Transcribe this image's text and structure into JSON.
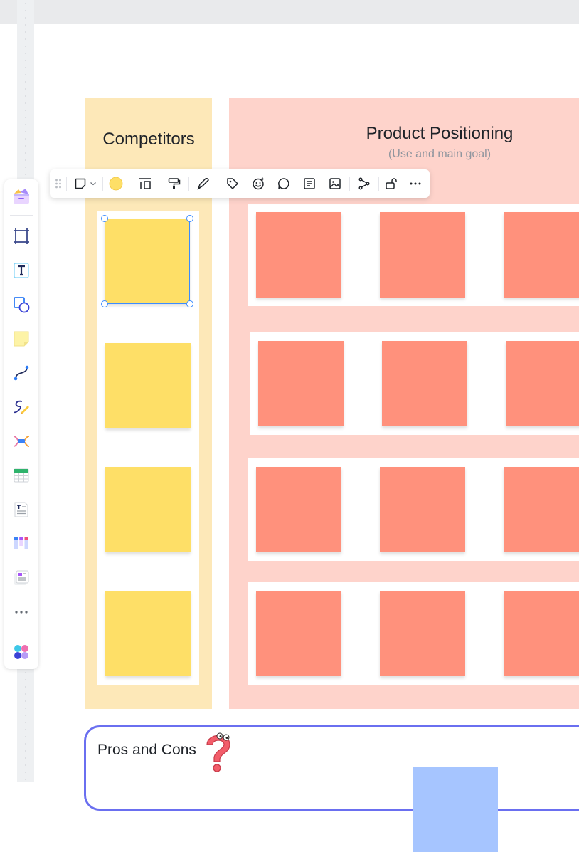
{
  "board": {
    "competitors_title": "Competitors",
    "product_title": "Product Positioning",
    "product_subtitle": "(Use and main goal)",
    "pros_cons_title": "Pros and Cons"
  },
  "colors": {
    "competitors_bg": "#fde8b8",
    "product_bg": "#fed3cb",
    "yellow_sticky": "#fedf67",
    "salmon_sticky": "#ff917c",
    "blue_sticky": "#a6c5ff",
    "selection": "#3c8cff",
    "frame_border": "#6a6ff0"
  },
  "toolbar": {
    "color_swatch": "#fedf67",
    "items": [
      "drag-handle-icon",
      "sticky-shape-icon",
      "chevron-down-icon",
      "color-swatch",
      "text-align-icon",
      "format-painter-icon",
      "pen-icon",
      "tag-icon",
      "emoji-icon",
      "comment-icon",
      "note-icon",
      "image-icon",
      "connector-icon",
      "unlock-icon",
      "more-icon"
    ]
  },
  "rail": {
    "items": [
      "templates-icon",
      "frame-icon",
      "text-icon",
      "shape-icon",
      "sticky-note-icon",
      "connector-line-icon",
      "pen-draw-icon",
      "mindmap-icon",
      "table-icon",
      "doc-icon",
      "kanban-icon",
      "card-icon",
      "more-tools-icon",
      "apps-icon"
    ]
  }
}
